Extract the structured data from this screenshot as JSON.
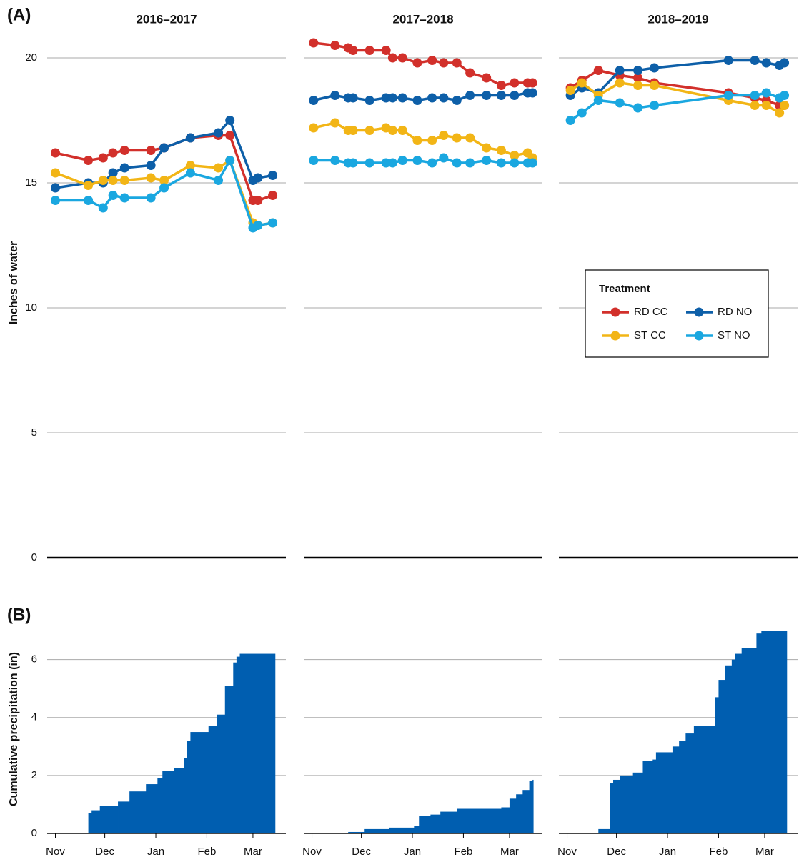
{
  "chart_data": [
    {
      "type": "line",
      "label": "(A)",
      "title": "2016–2017",
      "ylabel": "Inches of water",
      "xlim": [
        -5,
        140
      ],
      "ylim": [
        0,
        22
      ],
      "yticks": [
        0,
        5,
        10,
        15,
        20
      ],
      "grid": true,
      "x": [
        0,
        20,
        29,
        35,
        42,
        58,
        66,
        82,
        99,
        106,
        120,
        123,
        132
      ],
      "series": [
        {
          "color": "#d2302b",
          "values": [
            16.2,
            15.9,
            16.0,
            16.2,
            16.3,
            16.3,
            16.4,
            16.8,
            16.9,
            16.9,
            14.3,
            14.3,
            14.5
          ]
        },
        {
          "color": "#0d5fa8",
          "values": [
            14.8,
            15.0,
            15.0,
            15.4,
            15.6,
            15.7,
            16.4,
            16.8,
            17.0,
            17.5,
            15.1,
            15.2,
            15.3
          ]
        },
        {
          "color": "#f2b516",
          "values": [
            15.4,
            14.9,
            15.1,
            15.1,
            15.1,
            15.2,
            15.1,
            15.7,
            15.6,
            15.9,
            13.4,
            13.3,
            13.4
          ]
        },
        {
          "color": "#1aa7e0",
          "values": [
            14.3,
            14.3,
            14.0,
            14.5,
            14.4,
            14.4,
            14.8,
            15.4,
            15.1,
            15.9,
            13.2,
            13.3,
            13.4
          ]
        }
      ]
    },
    {
      "type": "line",
      "title": "2017–2018",
      "xlim": [
        -5,
        140
      ],
      "ylim": [
        0,
        22
      ],
      "yticks": [
        0,
        5,
        10,
        15,
        20
      ],
      "grid": true,
      "ytick_labels": false,
      "x": [
        1,
        14,
        22,
        25,
        35,
        45,
        49,
        55,
        64,
        73,
        80,
        88,
        96,
        106,
        115,
        123,
        131,
        134
      ],
      "series": [
        {
          "color": "#d2302b",
          "values": [
            20.6,
            20.5,
            20.4,
            20.3,
            20.3,
            20.3,
            20.0,
            20.0,
            19.8,
            19.9,
            19.8,
            19.8,
            19.4,
            19.2,
            18.9,
            19.0,
            19.0,
            19.0
          ]
        },
        {
          "color": "#0d5fa8",
          "values": [
            18.3,
            18.5,
            18.4,
            18.4,
            18.3,
            18.4,
            18.4,
            18.4,
            18.3,
            18.4,
            18.4,
            18.3,
            18.5,
            18.5,
            18.5,
            18.5,
            18.6,
            18.6
          ]
        },
        {
          "color": "#f2b516",
          "values": [
            17.2,
            17.4,
            17.1,
            17.1,
            17.1,
            17.2,
            17.1,
            17.1,
            16.7,
            16.7,
            16.9,
            16.8,
            16.8,
            16.4,
            16.3,
            16.1,
            16.2,
            16.0
          ]
        },
        {
          "color": "#1aa7e0",
          "values": [
            15.9,
            15.9,
            15.8,
            15.8,
            15.8,
            15.8,
            15.8,
            15.9,
            15.9,
            15.8,
            16.0,
            15.8,
            15.8,
            15.9,
            15.8,
            15.8,
            15.8,
            15.8
          ]
        }
      ]
    },
    {
      "type": "line",
      "title": "2018–2019",
      "xlim": [
        -5,
        140
      ],
      "ylim": [
        0,
        22
      ],
      "yticks": [
        0,
        5,
        10,
        15,
        20
      ],
      "grid": true,
      "ytick_labels": false,
      "legend": "right",
      "legend_title": "Treatment",
      "x": [
        2,
        9,
        19,
        32,
        43,
        53,
        98,
        114,
        121,
        129,
        132
      ],
      "series": [
        {
          "name": "RD CC",
          "color": "#d2302b",
          "values": [
            18.8,
            19.1,
            19.5,
            19.3,
            19.2,
            19.0,
            18.6,
            18.4,
            18.3,
            18.1,
            18.1
          ]
        },
        {
          "name": "RD NO",
          "color": "#0d5fa8",
          "values": [
            18.5,
            18.8,
            18.6,
            19.5,
            19.5,
            19.6,
            19.9,
            19.9,
            19.8,
            19.7,
            19.8
          ]
        },
        {
          "name": "ST CC",
          "color": "#f2b516",
          "values": [
            18.7,
            19.0,
            18.5,
            19.0,
            18.9,
            18.9,
            18.3,
            18.1,
            18.1,
            17.8,
            18.1
          ]
        },
        {
          "name": "ST NO",
          "color": "#1aa7e0",
          "values": [
            17.5,
            17.8,
            18.3,
            18.2,
            18.0,
            18.1,
            18.5,
            18.5,
            18.6,
            18.4,
            18.5
          ]
        }
      ]
    },
    {
      "type": "step-area",
      "label": "(B)",
      "ylabel": "Cumulative precipitation (in)",
      "color": "#005eb0",
      "xlim": [
        -5,
        140
      ],
      "ylim": [
        0,
        7.2
      ],
      "yticks": [
        0,
        2,
        4,
        6
      ],
      "grid": true,
      "xticks": [
        {
          "value": 0,
          "label": "Nov"
        },
        {
          "value": 30,
          "label": "Dec"
        },
        {
          "value": 61,
          "label": "Jan"
        },
        {
          "value": 92,
          "label": "Feb"
        },
        {
          "value": 120,
          "label": "Mar"
        }
      ],
      "x": [
        -5,
        19,
        20,
        22,
        27,
        38,
        45,
        55,
        62,
        65,
        72,
        78,
        80,
        82,
        93,
        98,
        103,
        108,
        110,
        112,
        133
      ],
      "values": [
        0,
        0,
        0.7,
        0.8,
        0.95,
        1.1,
        1.45,
        1.7,
        1.9,
        2.15,
        2.25,
        2.6,
        3.2,
        3.5,
        3.7,
        4.1,
        5.1,
        5.9,
        6.1,
        6.2,
        6.2
      ]
    },
    {
      "type": "step-area",
      "color": "#005eb0",
      "xlim": [
        -5,
        140
      ],
      "ylim": [
        0,
        7.2
      ],
      "yticks": [
        0,
        2,
        4,
        6
      ],
      "grid": true,
      "ytick_labels": false,
      "xticks": [
        {
          "value": 0,
          "label": "Nov"
        },
        {
          "value": 30,
          "label": "Dec"
        },
        {
          "value": 61,
          "label": "Jan"
        },
        {
          "value": 92,
          "label": "Feb"
        },
        {
          "value": 120,
          "label": "Mar"
        }
      ],
      "x": [
        -5,
        22,
        32,
        47,
        62,
        65,
        72,
        78,
        88,
        103,
        115,
        120,
        124,
        128,
        132,
        134
      ],
      "values": [
        0,
        0.05,
        0.15,
        0.2,
        0.25,
        0.6,
        0.65,
        0.75,
        0.85,
        0.85,
        0.9,
        1.2,
        1.35,
        1.5,
        1.8,
        1.85
      ]
    },
    {
      "type": "step-area",
      "color": "#005eb0",
      "xlim": [
        -5,
        140
      ],
      "ylim": [
        0,
        7.2
      ],
      "yticks": [
        0,
        2,
        4,
        6
      ],
      "grid": true,
      "ytick_labels": false,
      "xticks": [
        {
          "value": 0,
          "label": "Nov"
        },
        {
          "value": 30,
          "label": "Dec"
        },
        {
          "value": 61,
          "label": "Jan"
        },
        {
          "value": 92,
          "label": "Feb"
        },
        {
          "value": 120,
          "label": "Mar"
        }
      ],
      "x": [
        -5,
        19,
        26,
        28,
        32,
        40,
        46,
        52,
        54,
        64,
        68,
        72,
        77,
        90,
        92,
        96,
        100,
        102,
        106,
        115,
        118,
        133
      ],
      "values": [
        0,
        0.15,
        1.75,
        1.85,
        2.0,
        2.1,
        2.5,
        2.55,
        2.8,
        3.0,
        3.2,
        3.45,
        3.7,
        4.7,
        5.3,
        5.8,
        6.0,
        6.2,
        6.4,
        6.9,
        7.0,
        7.0
      ]
    }
  ]
}
